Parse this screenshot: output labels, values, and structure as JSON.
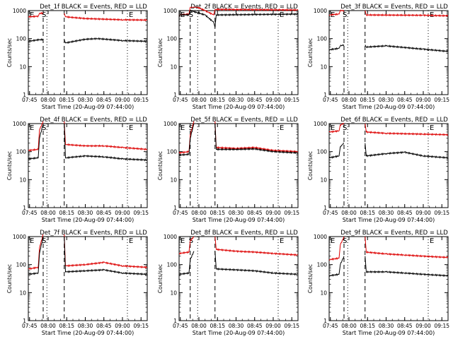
{
  "figure": {
    "events_color": "#000000",
    "lld_color": "#dd0000",
    "axis_color": "#000000"
  },
  "chart_data": [
    {
      "type": "line",
      "title": "Det_1f BLACK = Events, RED = LLD",
      "xlabel": "Start Time (20-Aug-09 07:44:00)",
      "ylabel": "Counts/sec",
      "x_ticks": [
        "07:45",
        "08:00",
        "08:15",
        "08:30",
        "08:45",
        "09:00",
        "09:15"
      ],
      "y_ticks": [
        "1",
        "10",
        "100",
        "1000"
      ],
      "ylim": [
        1,
        1000
      ],
      "yscale": "log",
      "x_minutes_range": [
        0,
        96
      ],
      "annotations": [
        "E",
        "S",
        "E"
      ],
      "dashed_lines": [
        "07:56",
        "08:13"
      ],
      "dotted_lines": [
        "07:59",
        "09:04"
      ],
      "events_series": {
        "name": "Events",
        "x": [
          "07:44",
          "07:53",
          "07:56",
          "08:13",
          "08:14",
          "08:30",
          "08:40",
          "09:00",
          "09:20"
        ],
        "y": [
          80,
          92,
          92,
          92,
          70,
          95,
          100,
          85,
          80
        ]
      },
      "lld_series": {
        "name": "LLD",
        "x": [
          "07:44",
          "07:52",
          "07:53",
          "07:56",
          "08:13",
          "08:14",
          "08:30",
          "09:00",
          "09:20"
        ],
        "y": [
          600,
          630,
          800,
          800,
          800,
          600,
          520,
          470,
          460
        ]
      },
      "gaps": [
        [
          "07:56",
          "08:13"
        ]
      ]
    },
    {
      "type": "line",
      "title": "Det_2f BLACK = Events, RED = LLD",
      "xlabel": "Start Time (20-Aug-09 07:44:00)",
      "ylabel": "Counts/sec",
      "x_ticks": [
        "07:45",
        "08:00",
        "08:15",
        "08:30",
        "08:45",
        "09:00",
        "09:15"
      ],
      "y_ticks": [
        "1",
        "10",
        "100",
        "1000"
      ],
      "ylim": [
        1,
        1000
      ],
      "yscale": "log",
      "x_minutes_range": [
        0,
        96
      ],
      "annotations": [
        "E",
        "S",
        "E"
      ],
      "dashed_lines": [
        "07:53",
        "08:13"
      ],
      "dotted_lines": [
        "07:59",
        "09:04"
      ],
      "events_series": {
        "name": "Events",
        "x": [
          "07:44",
          "07:52",
          "07:53",
          "08:05",
          "08:12",
          "08:13",
          "08:14",
          "09:20"
        ],
        "y": [
          700,
          700,
          1000,
          700,
          380,
          250,
          700,
          750
        ]
      },
      "lld_series": {
        "name": "LLD",
        "x": [
          "07:44",
          "07:52",
          "07:53",
          "07:56",
          "08:05",
          "08:12",
          "08:13",
          "08:14",
          "09:20"
        ],
        "y": [
          700,
          750,
          1400,
          1500,
          1000,
          700,
          1100,
          1100,
          1050
        ]
      },
      "gaps": []
    },
    {
      "type": "line",
      "title": "Det_3f BLACK = Events, RED = LLD",
      "xlabel": "Start Time (20-Aug-09 07:44:00)",
      "ylabel": "Counts/sec",
      "x_ticks": [
        "07:45",
        "08:00",
        "08:15",
        "08:30",
        "08:45",
        "09:00",
        "09:15"
      ],
      "y_ticks": [
        "1",
        "10",
        "100",
        "1000"
      ],
      "ylim": [
        1,
        1000
      ],
      "yscale": "log",
      "x_minutes_range": [
        0,
        96
      ],
      "annotations": [
        "E",
        "S",
        "E"
      ],
      "dashed_lines": [
        "07:56",
        "08:13"
      ],
      "dotted_lines": [
        "07:59",
        "09:04"
      ],
      "events_series": {
        "name": "Events",
        "x": [
          "07:44",
          "07:52",
          "07:53",
          "07:56",
          "08:13",
          "08:14",
          "08:30",
          "09:00",
          "09:20"
        ],
        "y": [
          40,
          45,
          55,
          60,
          60,
          50,
          55,
          42,
          35
        ]
      },
      "lld_series": {
        "name": "LLD",
        "x": [
          "07:44",
          "07:52",
          "07:53",
          "07:56",
          "08:13",
          "08:14",
          "09:00",
          "09:20"
        ],
        "y": [
          700,
          750,
          1000,
          1000,
          1000,
          700,
          680,
          650
        ]
      },
      "gaps": [
        [
          "07:56",
          "08:13"
        ]
      ]
    },
    {
      "type": "line",
      "title": "Det_4f BLACK = Events, RED = LLD",
      "xlabel": "Start Time (20-Aug-09 07:44:00)",
      "ylabel": "Counts/sec",
      "x_ticks": [
        "07:45",
        "08:00",
        "08:15",
        "08:30",
        "08:45",
        "09:00",
        "09:15"
      ],
      "y_ticks": [
        "1",
        "10",
        "100",
        "1000"
      ],
      "ylim": [
        1,
        1000
      ],
      "yscale": "log",
      "x_minutes_range": [
        0,
        96
      ],
      "annotations": [
        "E",
        "S",
        "E"
      ],
      "dashed_lines": [
        "07:56",
        "08:13"
      ],
      "dotted_lines": [
        "07:59",
        "09:04"
      ],
      "events_series": {
        "name": "Events",
        "x": [
          "07:44",
          "07:52",
          "07:53",
          "07:56",
          "08:13",
          "08:14",
          "08:30",
          "08:45",
          "09:00",
          "09:20"
        ],
        "y": [
          55,
          60,
          300,
          1000,
          1000,
          60,
          70,
          65,
          55,
          50
        ]
      },
      "lld_series": {
        "name": "LLD",
        "x": [
          "07:44",
          "07:52",
          "07:53",
          "07:56",
          "08:13",
          "08:14",
          "08:30",
          "08:45",
          "09:00",
          "09:20"
        ],
        "y": [
          110,
          120,
          600,
          1200,
          1200,
          180,
          160,
          160,
          140,
          120
        ]
      },
      "gaps": [
        [
          "07:56",
          "08:13"
        ]
      ]
    },
    {
      "type": "line",
      "title": "Det_5f BLACK = Events, RED = LLD",
      "xlabel": "Start Time (20-Aug-09 07:44:00)",
      "ylabel": "Counts/sec",
      "x_ticks": [
        "07:45",
        "08:00",
        "08:15",
        "08:30",
        "08:45",
        "09:00",
        "09:15"
      ],
      "y_ticks": [
        "1",
        "10",
        "100",
        "1000"
      ],
      "ylim": [
        1,
        1000
      ],
      "yscale": "log",
      "x_minutes_range": [
        0,
        96
      ],
      "annotations": [
        "E",
        "S",
        "E"
      ],
      "dashed_lines": [
        "07:53",
        "08:13"
      ],
      "dotted_lines": [
        "07:59",
        "09:04"
      ],
      "events_series": {
        "name": "Events",
        "x": [
          "07:44",
          "07:52",
          "07:53",
          "07:56",
          "08:13",
          "08:14",
          "08:30",
          "08:45",
          "09:00",
          "09:20"
        ],
        "y": [
          75,
          80,
          300,
          1000,
          1000,
          120,
          120,
          125,
          100,
          90
        ]
      },
      "lld_series": {
        "name": "LLD",
        "x": [
          "07:44",
          "07:52",
          "07:53",
          "07:56",
          "08:13",
          "08:14",
          "08:30",
          "08:45",
          "09:00",
          "09:20"
        ],
        "y": [
          90,
          100,
          400,
          1200,
          1200,
          140,
          130,
          140,
          110,
          100
        ]
      },
      "gaps": [
        [
          "07:56",
          "08:13"
        ]
      ]
    },
    {
      "type": "line",
      "title": "Det_6f BLACK = Events, RED = LLD",
      "xlabel": "Start Time (20-Aug-09 07:44:00)",
      "ylabel": "Counts/sec",
      "x_ticks": [
        "07:45",
        "08:00",
        "08:15",
        "08:30",
        "08:45",
        "09:00",
        "09:15"
      ],
      "y_ticks": [
        "1",
        "10",
        "100",
        "1000"
      ],
      "ylim": [
        1,
        1000
      ],
      "yscale": "log",
      "x_minutes_range": [
        0,
        96
      ],
      "annotations": [
        "E",
        "S",
        "E"
      ],
      "dashed_lines": [
        "07:56",
        "08:13"
      ],
      "dotted_lines": [
        "07:59",
        "09:04"
      ],
      "events_series": {
        "name": "Events",
        "x": [
          "07:44",
          "07:52",
          "07:53",
          "07:56",
          "08:13",
          "08:14",
          "08:30",
          "08:45",
          "09:00",
          "09:20"
        ],
        "y": [
          60,
          70,
          150,
          200,
          200,
          70,
          85,
          95,
          70,
          60
        ]
      },
      "lld_series": {
        "name": "LLD",
        "x": [
          "07:44",
          "07:52",
          "07:53",
          "07:56",
          "08:13",
          "08:14",
          "08:30",
          "09:00",
          "09:20"
        ],
        "y": [
          500,
          550,
          900,
          1000,
          1000,
          500,
          450,
          420,
          400
        ]
      },
      "gaps": [
        [
          "07:56",
          "08:13"
        ]
      ]
    },
    {
      "type": "line",
      "title": "Det_7f BLACK = Events, RED = LLD",
      "xlabel": "Start Time (20-Aug-09 07:44:00)",
      "ylabel": "Counts/sec",
      "x_ticks": [
        "07:45",
        "08:00",
        "08:15",
        "08:30",
        "08:45",
        "09:00",
        "09:15"
      ],
      "y_ticks": [
        "1",
        "10",
        "100",
        "1000"
      ],
      "ylim": [
        1,
        1000
      ],
      "yscale": "log",
      "x_minutes_range": [
        0,
        96
      ],
      "annotations": [
        "E",
        "S",
        "E"
      ],
      "dashed_lines": [
        "07:56",
        "08:13"
      ],
      "dotted_lines": [
        "07:59",
        "09:04"
      ],
      "events_series": {
        "name": "Events",
        "x": [
          "07:44",
          "07:52",
          "07:53",
          "07:56",
          "08:13",
          "08:14",
          "08:30",
          "08:45",
          "09:00",
          "09:20"
        ],
        "y": [
          45,
          50,
          250,
          1000,
          1000,
          55,
          60,
          65,
          50,
          45
        ]
      },
      "lld_series": {
        "name": "LLD",
        "x": [
          "07:44",
          "07:52",
          "07:53",
          "07:56",
          "08:13",
          "08:14",
          "08:30",
          "08:45",
          "09:00",
          "09:20"
        ],
        "y": [
          70,
          80,
          400,
          1200,
          1200,
          90,
          100,
          120,
          90,
          80
        ]
      },
      "gaps": [
        [
          "07:56",
          "08:13"
        ]
      ]
    },
    {
      "type": "line",
      "title": "Det_8f BLACK = Events, RED = LLD",
      "xlabel": "Start Time (20-Aug-09 07:44:00)",
      "ylabel": "Counts/sec",
      "x_ticks": [
        "07:45",
        "08:00",
        "08:15",
        "08:30",
        "08:45",
        "09:00",
        "09:15"
      ],
      "y_ticks": [
        "1",
        "10",
        "100",
        "1000"
      ],
      "ylim": [
        1,
        1000
      ],
      "yscale": "log",
      "x_minutes_range": [
        0,
        96
      ],
      "annotations": [
        "E",
        "S",
        "E"
      ],
      "dashed_lines": [
        "07:53",
        "08:13"
      ],
      "dotted_lines": [
        "07:59",
        "09:04"
      ],
      "events_series": {
        "name": "Events",
        "x": [
          "07:44",
          "07:52",
          "07:53",
          "07:56",
          "08:13",
          "08:14",
          "08:30",
          "08:45",
          "09:00",
          "09:20"
        ],
        "y": [
          45,
          50,
          150,
          300,
          300,
          70,
          65,
          60,
          50,
          45
        ]
      },
      "lld_series": {
        "name": "LLD",
        "x": [
          "07:44",
          "07:52",
          "07:53",
          "07:56",
          "08:13",
          "08:14",
          "08:30",
          "08:45",
          "09:00",
          "09:20"
        ],
        "y": [
          250,
          280,
          700,
          1000,
          1000,
          350,
          300,
          280,
          250,
          220
        ]
      },
      "gaps": [
        [
          "07:56",
          "08:13"
        ]
      ]
    },
    {
      "type": "line",
      "title": "Det_9f BLACK = Events, RED = LLD",
      "xlabel": "Start Time (20-Aug-09 07:44:00)",
      "ylabel": "Counts/sec",
      "x_ticks": [
        "07:45",
        "08:00",
        "08:15",
        "08:30",
        "08:45",
        "09:00",
        "09:15"
      ],
      "y_ticks": [
        "1",
        "10",
        "100",
        "1000"
      ],
      "ylim": [
        1,
        1000
      ],
      "yscale": "log",
      "x_minutes_range": [
        0,
        96
      ],
      "annotations": [
        "E",
        "S",
        "E"
      ],
      "dashed_lines": [
        "07:56",
        "08:13"
      ],
      "dotted_lines": [
        "07:59",
        "09:04"
      ],
      "events_series": {
        "name": "Events",
        "x": [
          "07:44",
          "07:52",
          "07:53",
          "07:56",
          "08:13",
          "08:14",
          "08:30",
          "08:45",
          "09:00",
          "09:20"
        ],
        "y": [
          40,
          45,
          100,
          200,
          200,
          55,
          55,
          50,
          45,
          40
        ]
      },
      "lld_series": {
        "name": "LLD",
        "x": [
          "07:44",
          "07:52",
          "07:53",
          "07:56",
          "08:13",
          "08:14",
          "08:30",
          "08:45",
          "09:00",
          "09:20"
        ],
        "y": [
          150,
          170,
          500,
          1000,
          1000,
          280,
          240,
          220,
          200,
          180
        ]
      },
      "gaps": [
        [
          "07:56",
          "08:13"
        ]
      ]
    }
  ]
}
